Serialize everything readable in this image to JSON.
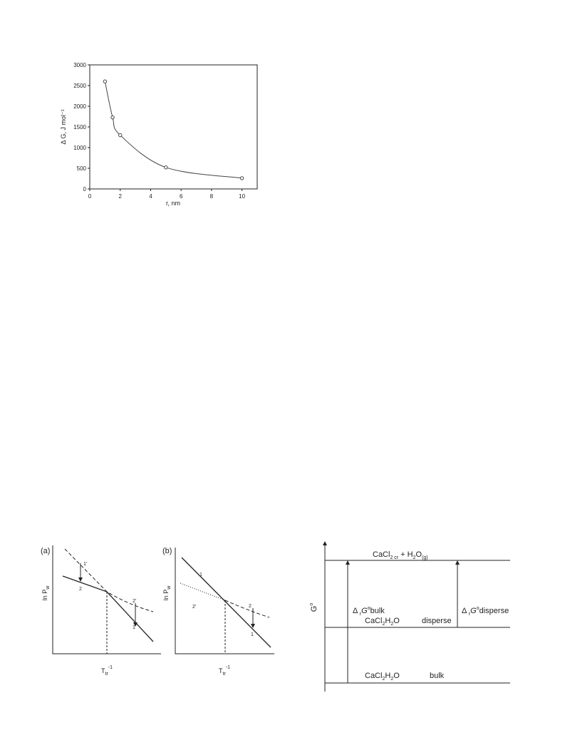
{
  "chart_data": {
    "type": "line",
    "xlabel": "r, nm",
    "ylabel": "Δ G, J mol⁻¹",
    "x": [
      1,
      1.5,
      2,
      5,
      10
    ],
    "series": [
      {
        "color": "#444444",
        "values": [
          2600,
          1730,
          1300,
          520,
          260
        ]
      }
    ],
    "xlim": [
      0,
      11
    ],
    "xticks": [
      0,
      2,
      4,
      6,
      8,
      10
    ],
    "ylim": [
      0,
      3000
    ],
    "yticks": [
      0,
      500,
      1000,
      1500,
      2000,
      2500,
      3000
    ]
  },
  "diagrams": {
    "a": {
      "panel": "(a)",
      "ylabel": [
        "ln P",
        "w"
      ],
      "xlabel": [
        "T",
        "tr",
        "-1"
      ],
      "curve_labels": [
        "1'",
        "2",
        "2'",
        "1"
      ]
    },
    "b": {
      "panel": "(b)",
      "ylabel": [
        "ln P",
        "w"
      ],
      "xlabel": [
        "T",
        "tr",
        "-1"
      ],
      "curve_labels": [
        "1",
        "2'",
        "2",
        "1"
      ]
    },
    "energy": {
      "yaxis": [
        "G",
        "o"
      ],
      "top": [
        "CaCl",
        "2 cr",
        " + H",
        "2",
        "O",
        "(g)"
      ],
      "left_arrow": [
        "Δ ",
        "r",
        "G",
        "o",
        "bulk"
      ],
      "right_arrow": [
        "Δ ",
        "r",
        "G",
        "o",
        "disperse"
      ],
      "middle": [
        "CaCl",
        "2",
        "H",
        "2",
        "O",
        "disperse"
      ],
      "bottom": [
        "CaCl",
        "2",
        "H",
        "2",
        "O",
        "bulk"
      ]
    }
  }
}
